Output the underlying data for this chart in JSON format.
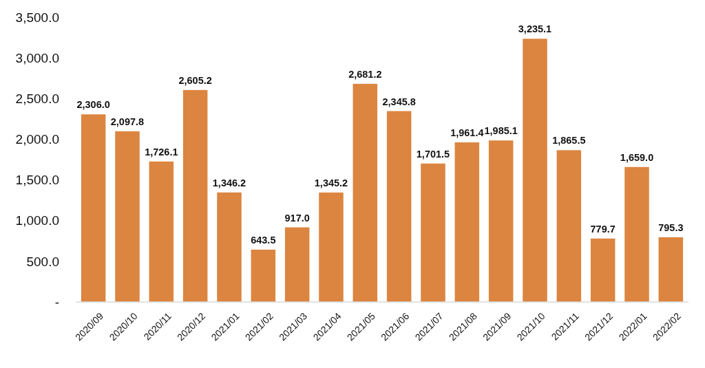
{
  "chart_data": {
    "type": "bar",
    "categories": [
      "2020/09",
      "2020/10",
      "2020/11",
      "2020/12",
      "2021/01",
      "2021/02",
      "2021/03",
      "2021/04",
      "2021/05",
      "2021/06",
      "2021/07",
      "2021/08",
      "2021/09",
      "2021/10",
      "2021/11",
      "2021/12",
      "2022/01",
      "2022/02"
    ],
    "values": [
      2306.0,
      2097.8,
      1726.1,
      2605.2,
      1346.2,
      643.5,
      917.0,
      1345.2,
      2681.2,
      2345.8,
      1701.5,
      1961.4,
      1985.1,
      3235.1,
      1865.5,
      779.7,
      1659.0,
      795.3
    ],
    "value_labels": [
      "2,306.0",
      "2,097.8",
      "1,726.1",
      "2,605.2",
      "1,346.2",
      "643.5",
      "917.0",
      "1,345.2",
      "2,681.2",
      "2,345.8",
      "1,701.5",
      "1,961.4",
      "1,985.1",
      "3,235.1",
      "1,865.5",
      "779.7",
      "1,659.0",
      "795.3"
    ],
    "color": "#dc8540",
    "ylim": [
      0,
      3500
    ],
    "yticks": [
      {
        "value": 0,
        "label": "-"
      },
      {
        "value": 500,
        "label": "500.0"
      },
      {
        "value": 1000,
        "label": "1,000.0"
      },
      {
        "value": 1500,
        "label": "1,500.0"
      },
      {
        "value": 2000,
        "label": "2,000.0"
      },
      {
        "value": 2500,
        "label": "2,500.0"
      },
      {
        "value": 3000,
        "label": "3,000.0"
      },
      {
        "value": 3500,
        "label": "3,500.0"
      }
    ]
  }
}
